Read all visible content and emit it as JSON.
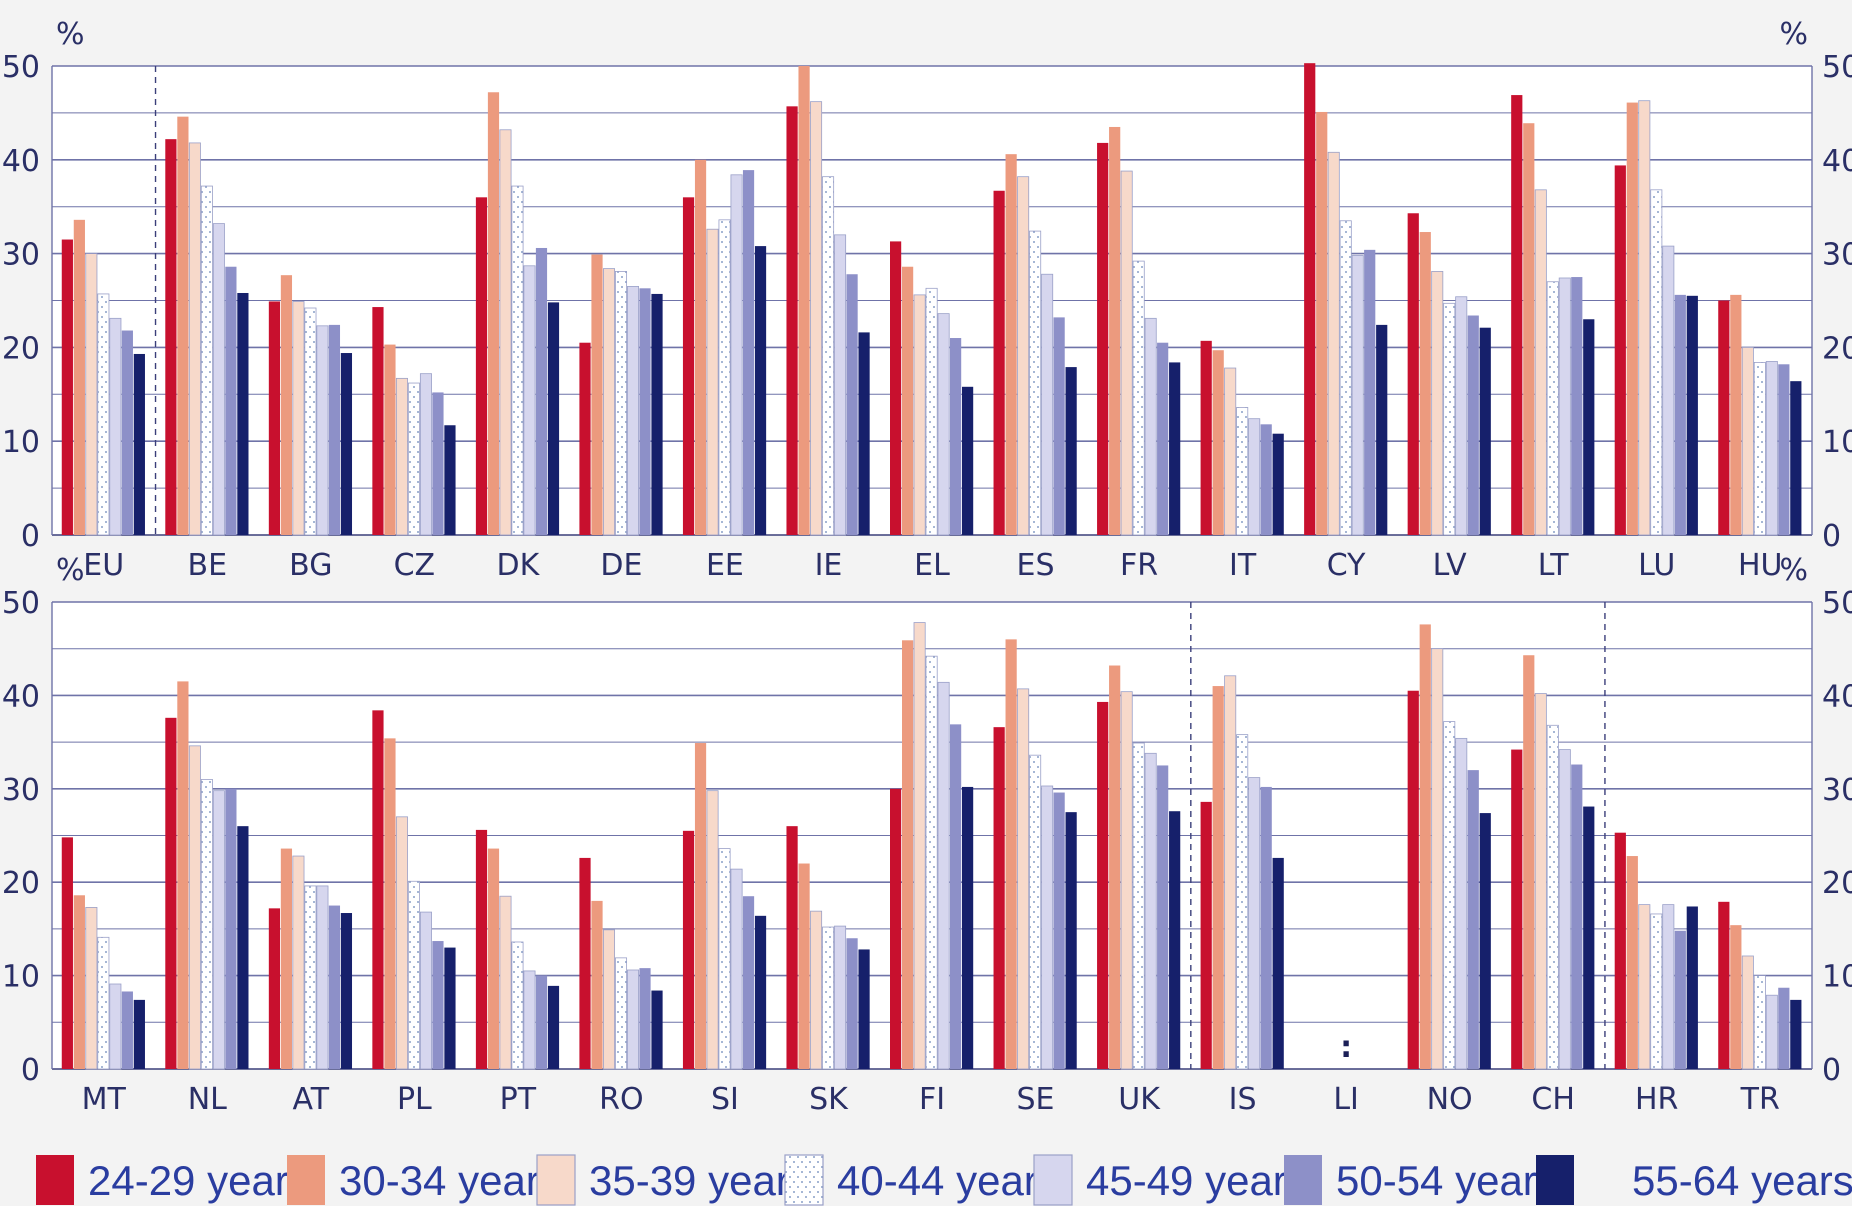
{
  "chart_data": {
    "type": "bar",
    "ylim": [
      0,
      50
    ],
    "yticks": [
      0,
      10,
      20,
      30,
      40,
      50
    ],
    "unit_label": "%",
    "legend_position": "bottom",
    "colors": [
      "#c8102e",
      "#ec9a7e",
      "#f7d9ca",
      "#ffffff",
      "#d6d6ee",
      "#8d90c8",
      "#16206b"
    ],
    "series_names": [
      "24-29 years",
      "30-34 years",
      "35-39 years",
      "40-44 years",
      "45-49 years",
      "50-54 years",
      "55-64 years"
    ],
    "panels": [
      {
        "categories": [
          "EU",
          "BE",
          "BG",
          "CZ",
          "DK",
          "DE",
          "EE",
          "IE",
          "EL",
          "ES",
          "FR",
          "IT",
          "CY",
          "LV",
          "LT",
          "LU",
          "HU"
        ],
        "series": [
          {
            "name": "24-29 years",
            "values": [
              31.5,
              42.2,
              24.9,
              24.3,
              36,
              20.5,
              36,
              45.7,
              31.3,
              36.7,
              41.8,
              20.7,
              50.3,
              34.3,
              46.9,
              39.4,
              25
            ]
          },
          {
            "name": "30-34 years",
            "values": [
              33.6,
              44.6,
              27.7,
              20.3,
              47.2,
              29.9,
              40,
              50,
              28.6,
              40.6,
              43.5,
              19.7,
              45.1,
              32.3,
              43.9,
              46.1,
              25.6
            ]
          },
          {
            "name": "35-39 years",
            "values": [
              30,
              41.8,
              24.9,
              16.7,
              43.2,
              28.4,
              32.6,
              46.2,
              25.6,
              38.2,
              38.8,
              17.8,
              40.8,
              28.1,
              36.8,
              46.3,
              20
            ]
          },
          {
            "name": "40-44 years",
            "values": [
              25.7,
              37.2,
              24.2,
              16.2,
              37.2,
              28.1,
              33.6,
              38.2,
              26.3,
              32.4,
              29.2,
              13.6,
              33.5,
              24.7,
              27,
              36.8,
              18.4
            ]
          },
          {
            "name": "45-49 years",
            "values": [
              23.1,
              33.2,
              22.3,
              17.2,
              28.7,
              26.5,
              38.4,
              32,
              23.6,
              27.8,
              23.1,
              12.4,
              29.8,
              25.4,
              27.4,
              30.8,
              18.5
            ]
          },
          {
            "name": "50-54 years",
            "values": [
              21.8,
              28.6,
              22.4,
              15.2,
              30.6,
              26.3,
              38.9,
              27.8,
              21,
              23.2,
              20.5,
              11.8,
              30.4,
              23.4,
              27.5,
              25.6,
              18.2
            ]
          },
          {
            "name": "55-64 years",
            "values": [
              19.3,
              25.8,
              19.4,
              11.7,
              24.8,
              25.7,
              30.8,
              21.6,
              15.8,
              17.9,
              18.4,
              10.8,
              22.4,
              22.1,
              23,
              25.5,
              16.4
            ]
          }
        ],
        "separators_after": [
          0
        ]
      },
      {
        "categories": [
          "MT",
          "NL",
          "AT",
          "PL",
          "PT",
          "RO",
          "SI",
          "SK",
          "FI",
          "SE",
          "UK",
          "IS",
          "LI",
          "NO",
          "CH",
          "HR",
          "TR"
        ],
        "series": [
          {
            "name": "24-29 years",
            "values": [
              24.8,
              37.6,
              17.2,
              38.4,
              25.6,
              22.6,
              25.5,
              26,
              30,
              36.6,
              39.3,
              28.6,
              null,
              40.5,
              34.2,
              25.3,
              17.9
            ]
          },
          {
            "name": "30-34 years",
            "values": [
              18.6,
              41.5,
              23.6,
              35.4,
              23.6,
              18,
              34.9,
              22,
              45.9,
              46,
              43.2,
              41,
              null,
              47.6,
              44.3,
              22.8,
              15.4
            ]
          },
          {
            "name": "35-39 years",
            "values": [
              17.3,
              34.6,
              22.8,
              27,
              18.5,
              14.9,
              29.8,
              16.9,
              47.8,
              40.7,
              40.4,
              42.1,
              null,
              45,
              40.2,
              17.6,
              12.1
            ]
          },
          {
            "name": "40-44 years",
            "values": [
              14.1,
              31,
              19.6,
              20.1,
              13.6,
              11.9,
              23.6,
              15.2,
              44.2,
              33.6,
              34.9,
              35.8,
              null,
              37.2,
              36.8,
              16.6,
              10
            ]
          },
          {
            "name": "45-49 years",
            "values": [
              9.1,
              29.8,
              19.6,
              16.8,
              10.5,
              10.6,
              21.4,
              15.3,
              41.4,
              30.3,
              33.8,
              31.2,
              null,
              35.4,
              34.2,
              17.6,
              7.9
            ]
          },
          {
            "name": "50-54 years",
            "values": [
              8.3,
              30,
              17.5,
              13.7,
              10,
              10.8,
              18.5,
              14,
              36.9,
              29.6,
              32.5,
              30.2,
              null,
              32,
              32.6,
              14.8,
              8.7
            ]
          },
          {
            "name": "55-64 years",
            "values": [
              7.4,
              26,
              16.7,
              13,
              8.9,
              8.4,
              16.4,
              12.8,
              30.2,
              27.5,
              27.6,
              22.6,
              null,
              27.4,
              28.1,
              17.4,
              7.4
            ]
          }
        ],
        "separators_after": [
          10,
          14
        ],
        "missing_marker": ":"
      }
    ],
    "legend": [
      {
        "label": "24-29 years",
        "color": "#c8102e",
        "pattern": "solid"
      },
      {
        "label": "30-34 years",
        "color": "#ec9a7e",
        "pattern": "solid"
      },
      {
        "label": "35-39 years",
        "color": "#f7d9ca",
        "pattern": "solid"
      },
      {
        "label": "40-44 years",
        "color": "#ffffff",
        "pattern": "dotted"
      },
      {
        "label": "45-49 years",
        "color": "#d6d6ee",
        "pattern": "solid"
      },
      {
        "label": "50-54 years",
        "color": "#8d90c8",
        "pattern": "solid"
      },
      {
        "label": "55-64 years",
        "color": "#16206b",
        "pattern": "solid"
      }
    ]
  }
}
